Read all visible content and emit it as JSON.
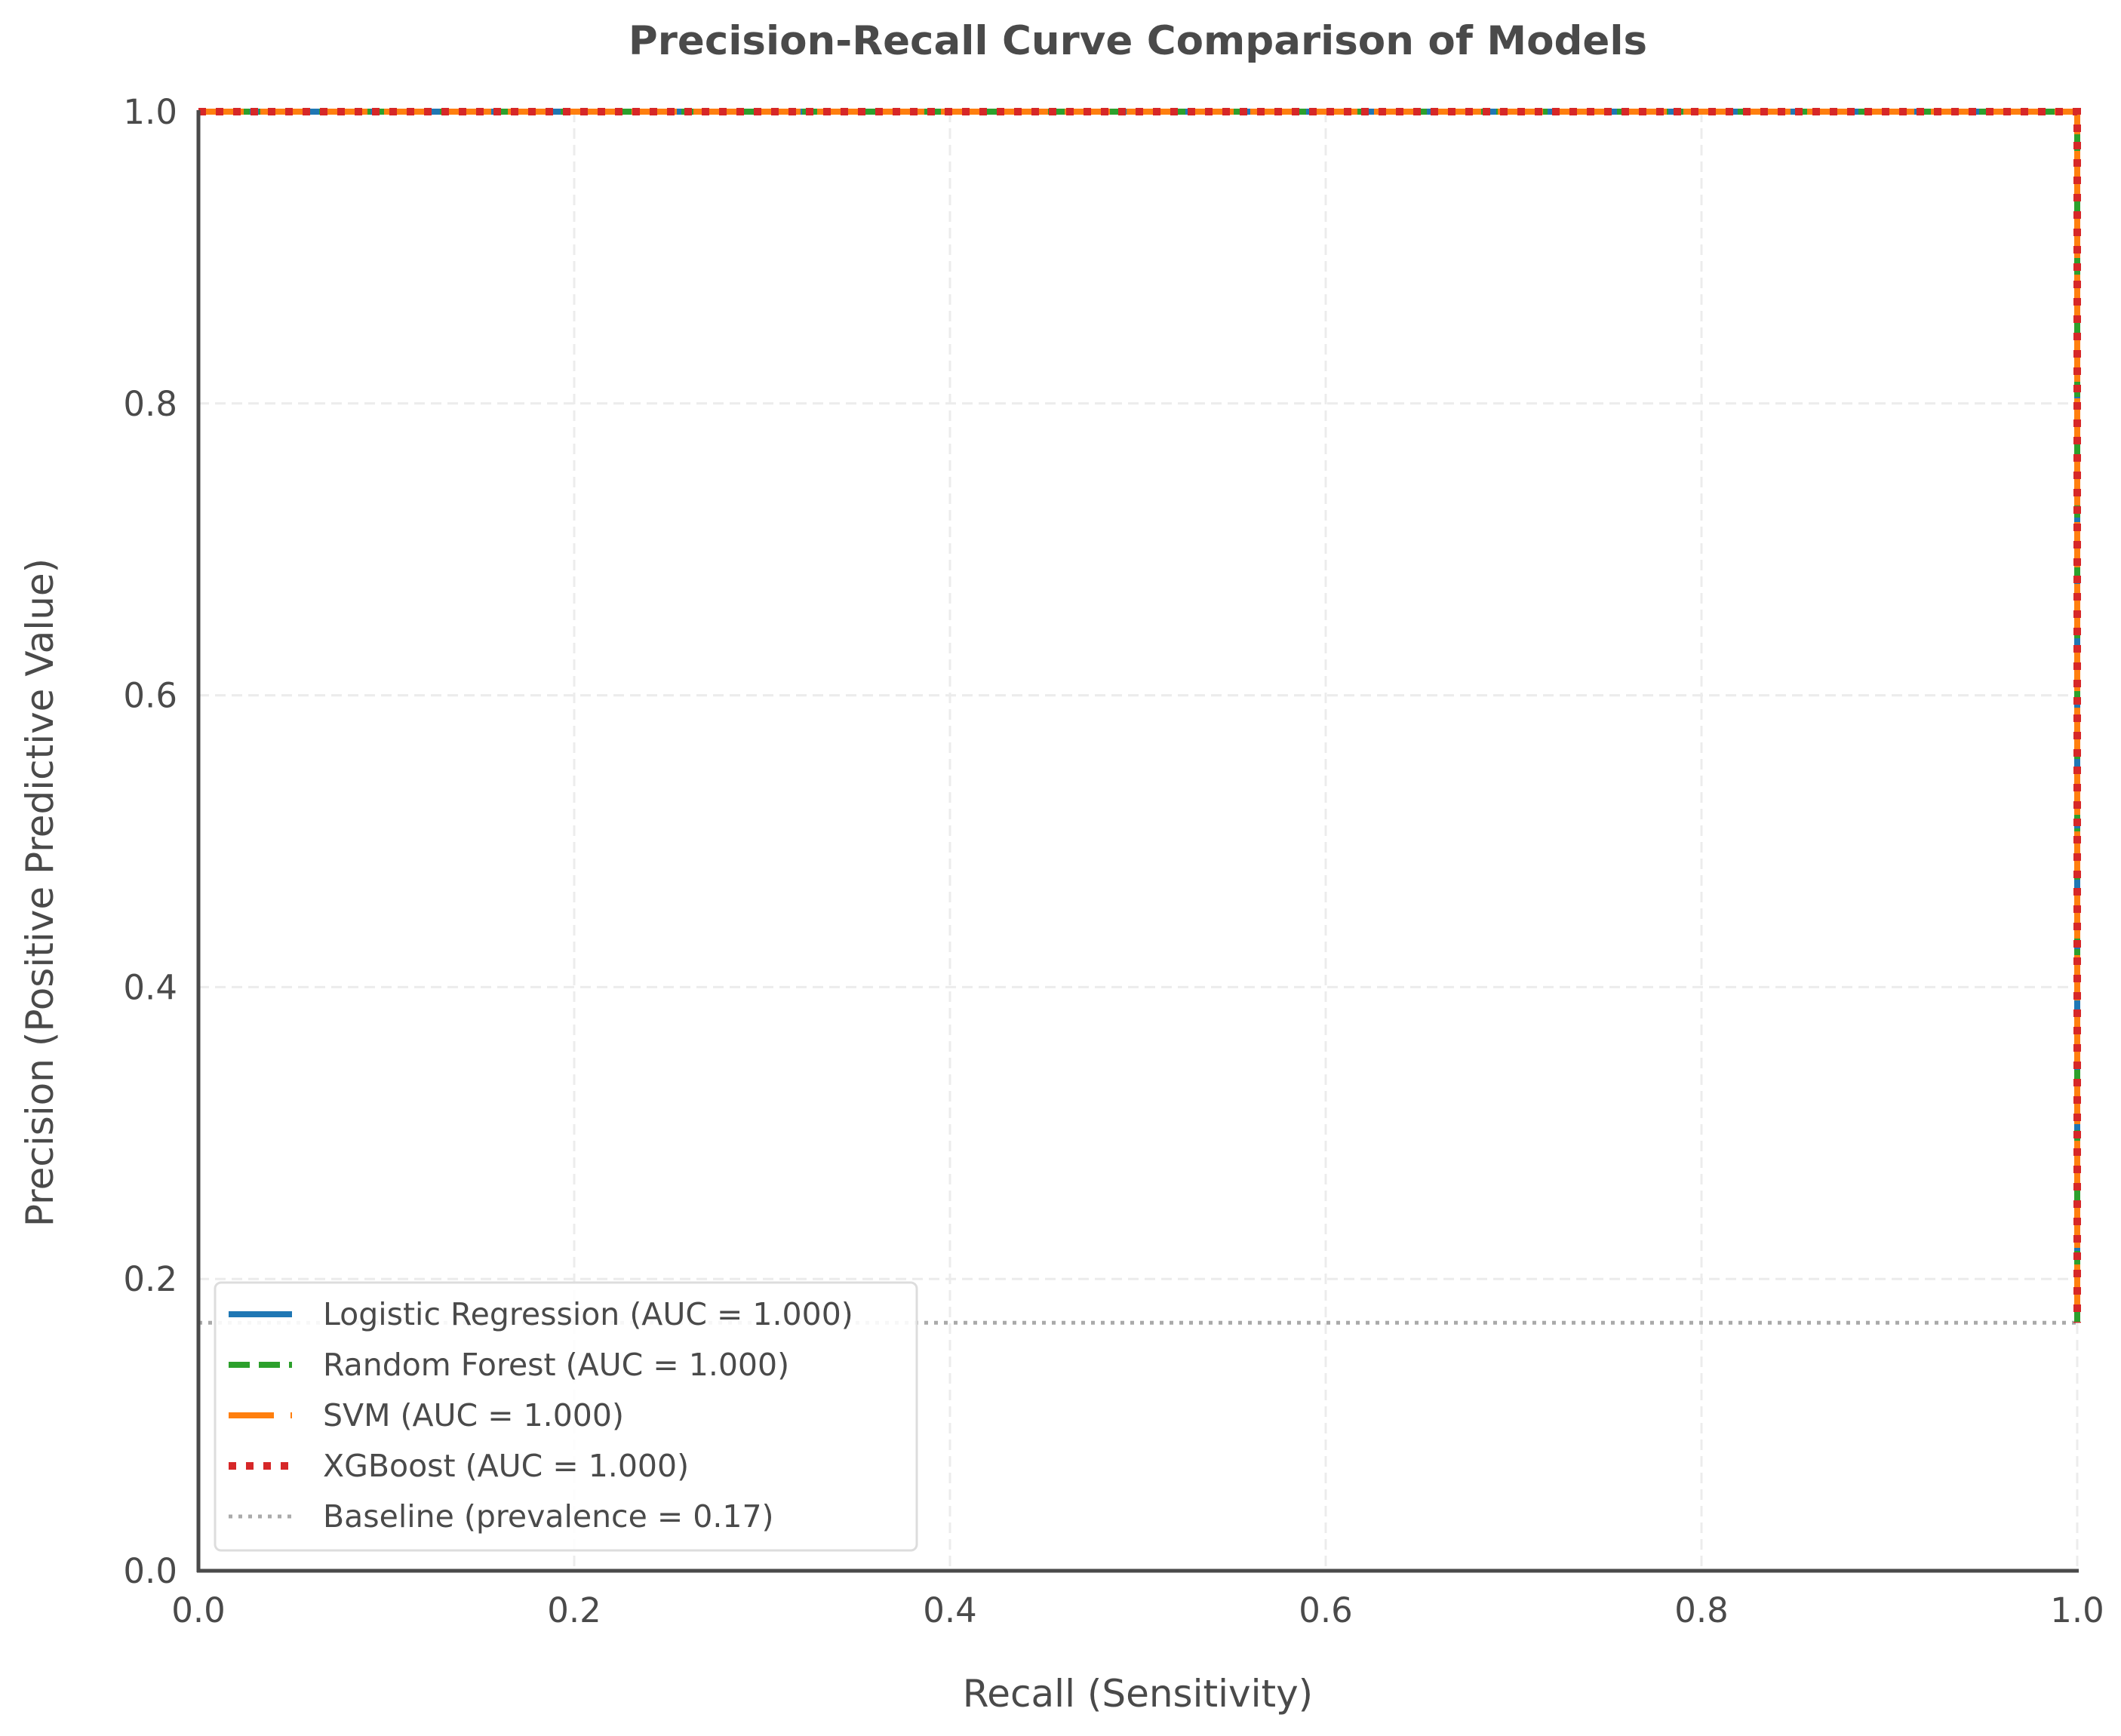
{
  "chart_data": {
    "type": "line",
    "title": "Precision-Recall Curve Comparison of Models",
    "xlabel": "Recall (Sensitivity)",
    "ylabel": "Precision (Positive Predictive Value)",
    "xlim": [
      0.0,
      1.0
    ],
    "ylim": [
      0.0,
      1.0
    ],
    "xticks": [
      "0.0",
      "0.2",
      "0.4",
      "0.6",
      "0.8",
      "1.0"
    ],
    "yticks": [
      "0.0",
      "0.2",
      "0.4",
      "0.6",
      "0.8",
      "1.0"
    ],
    "grid": true,
    "legend_location": "lower-left",
    "series": [
      {
        "name": "Logistic Regression (AUC = 1.000)",
        "color": "#1f77b4",
        "style": "solid",
        "x": [
          0.0,
          1.0,
          1.0
        ],
        "y": [
          1.0,
          1.0,
          0.17
        ]
      },
      {
        "name": "Random Forest (AUC = 1.000)",
        "color": "#2ca02c",
        "style": "dashed",
        "x": [
          0.0,
          1.0,
          1.0
        ],
        "y": [
          1.0,
          1.0,
          0.17
        ]
      },
      {
        "name": "SVM (AUC = 1.000)",
        "color": "#ff7f0e",
        "style": "long-dash",
        "x": [
          0.0,
          1.0,
          1.0
        ],
        "y": [
          1.0,
          1.0,
          0.17
        ]
      },
      {
        "name": "XGBoost (AUC = 1.000)",
        "color": "#d62728",
        "style": "dotted",
        "x": [
          0.0,
          1.0,
          1.0
        ],
        "y": [
          1.0,
          1.0,
          0.17
        ]
      },
      {
        "name": "Baseline (prevalence = 0.17)",
        "color": "#aaaaaa",
        "style": "fine-dotted",
        "x": [
          0.0,
          1.0
        ],
        "y": [
          0.17,
          0.17
        ]
      }
    ]
  }
}
